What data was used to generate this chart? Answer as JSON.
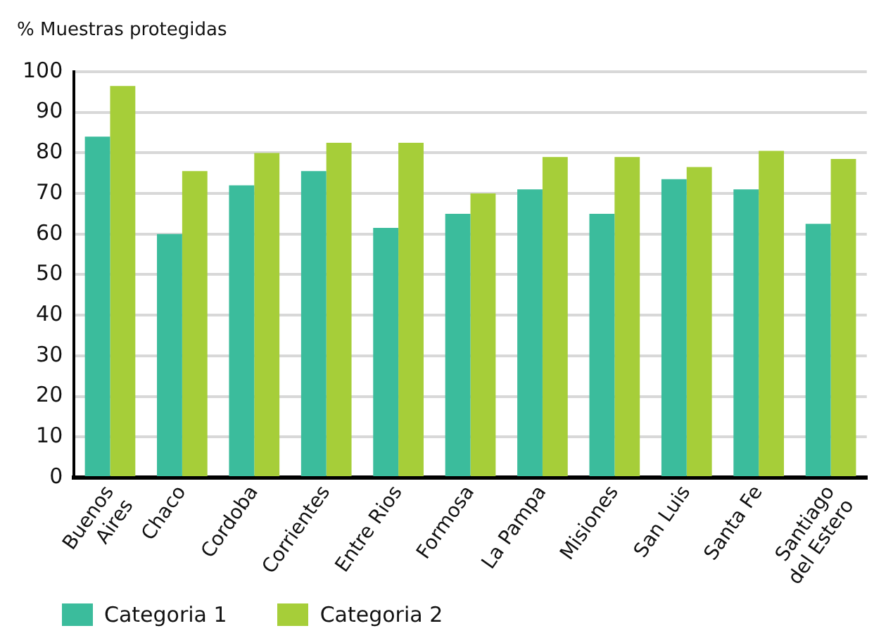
{
  "chart_data": {
    "type": "bar",
    "ylabel": "% Muestras protegidas",
    "categories": [
      "Buenos Aires",
      "Chaco",
      "Cordoba",
      "Corrientes",
      "Entre Rios",
      "Formosa",
      "La Pampa",
      "Misiones",
      "San Luis",
      "Santa Fe",
      "Santiago del Estero"
    ],
    "series": [
      {
        "name": "Categoria 1",
        "color": "#3bbc9c",
        "values": [
          84,
          60,
          72,
          75.5,
          61.5,
          65,
          71,
          65,
          73.5,
          71,
          62.5
        ]
      },
      {
        "name": "Categoria 2",
        "color": "#a6ce39",
        "values": [
          96.5,
          75.5,
          80,
          82.5,
          82.5,
          70,
          79,
          79,
          76.5,
          80.5,
          78.5
        ]
      }
    ],
    "ylim": [
      0,
      100
    ],
    "yticks": [
      0,
      10,
      20,
      30,
      40,
      50,
      60,
      70,
      80,
      90,
      100
    ],
    "grid": "y",
    "legend": "bottom left"
  }
}
